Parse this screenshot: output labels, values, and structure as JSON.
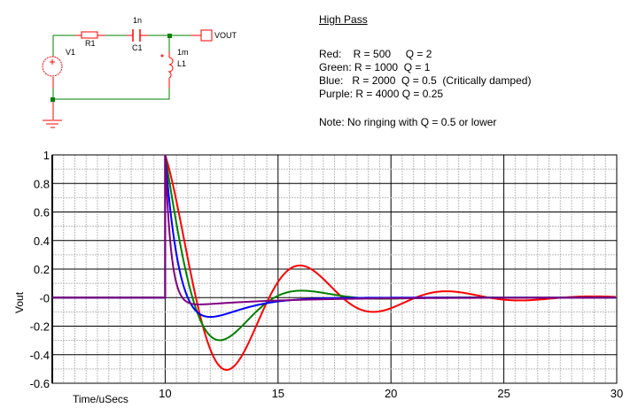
{
  "schematic": {
    "components": {
      "r1": {
        "name": "R1"
      },
      "c1": {
        "name": "C1",
        "value": "1n"
      },
      "l1": {
        "name": "L1",
        "value": "1m"
      },
      "v1": {
        "name": "V1"
      },
      "output": {
        "name": "VOUT"
      }
    },
    "colors": {
      "wire": "#008000",
      "component": "#ff0000"
    }
  },
  "annotation": {
    "title": "High Pass",
    "lines": [
      "Red:    R = 500     Q = 2",
      "Green: R = 1000  Q = 1",
      "Blue:   R = 2000  Q = 0.5  (Critically damped)",
      "Purple: R = 4000 Q = 0.25"
    ],
    "note": "Note: No ringing with Q = 0.5 or lower"
  },
  "chart_data": {
    "type": "line",
    "title": "",
    "xlabel": "Time/uSecs",
    "ylabel": "Vout",
    "xlim": [
      5,
      30
    ],
    "ylim": [
      -0.6,
      1
    ],
    "x_ticks": [
      10,
      15,
      20,
      25,
      30
    ],
    "x_tick_labels": [
      "10",
      "15",
      "20",
      "25",
      "30"
    ],
    "y_ticks": [
      1,
      0.8,
      0.6,
      0.4,
      0.2,
      0,
      -0.2,
      -0.4,
      -0.6
    ],
    "y_tick_labels": [
      "1",
      "0.8",
      "0.6",
      "0.4",
      "0.2",
      "-0",
      "-0.2",
      "-0.4",
      "-0.6"
    ],
    "grid": {
      "major": true,
      "minor": true,
      "x_major_step": 5,
      "x_minor_step": 0.5,
      "y_major_step": 0.2,
      "y_minor_step": 0.1
    },
    "step_time": 10,
    "circuit": {
      "L_henry": 0.001,
      "C_farad": 1e-09
    },
    "series": [
      {
        "color": "#ff0000",
        "R": 500,
        "Q": 2,
        "min": {
          "x": 12.7,
          "y": -0.5
        },
        "max_after": {
          "x": 16,
          "y": 0.23
        }
      },
      {
        "color": "#008000",
        "R": 1000,
        "Q": 1,
        "min": {
          "x": 12.4,
          "y": -0.29
        },
        "max_after": {
          "x": 16,
          "y": 0.05
        }
      },
      {
        "color": "#0000ff",
        "R": 2000,
        "Q": 0.5,
        "min": {
          "x": 12,
          "y": -0.13
        }
      },
      {
        "color": "#800080",
        "R": 4000,
        "Q": 0.25,
        "min": {
          "x": 11.3,
          "y": -0.04
        }
      }
    ]
  }
}
